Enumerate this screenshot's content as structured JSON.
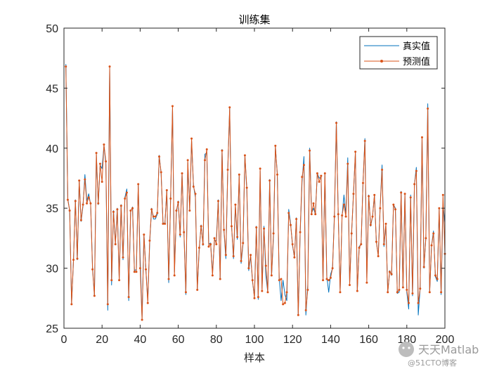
{
  "chart_data": {
    "type": "line",
    "title": "训练集",
    "xlabel": "样本",
    "ylabel": "",
    "xlim": [
      0,
      200
    ],
    "ylim": [
      25,
      50
    ],
    "x_ticks": [
      0,
      20,
      40,
      60,
      80,
      100,
      120,
      140,
      160,
      180,
      200
    ],
    "y_ticks": [
      25,
      30,
      35,
      40,
      45,
      50
    ],
    "grid": false,
    "legend_position": "top-right",
    "x": [
      1,
      2,
      3,
      4,
      5,
      6,
      7,
      8,
      9,
      10,
      11,
      12,
      13,
      14,
      15,
      16,
      17,
      18,
      19,
      20,
      21,
      22,
      23,
      24,
      25,
      26,
      27,
      28,
      29,
      30,
      31,
      32,
      33,
      34,
      35,
      36,
      37,
      38,
      39,
      40,
      41,
      42,
      43,
      44,
      45,
      46,
      47,
      48,
      49,
      50,
      51,
      52,
      53,
      54,
      55,
      56,
      57,
      58,
      59,
      60,
      61,
      62,
      63,
      64,
      65,
      66,
      67,
      68,
      69,
      70,
      71,
      72,
      73,
      74,
      75,
      76,
      77,
      78,
      79,
      80,
      81,
      82,
      83,
      84,
      85,
      86,
      87,
      88,
      89,
      90,
      91,
      92,
      93,
      94,
      95,
      96,
      97,
      98,
      99,
      100,
      101,
      102,
      103,
      104,
      105,
      106,
      107,
      108,
      109,
      110,
      111,
      112,
      113,
      114,
      115,
      116,
      117,
      118,
      119,
      120,
      121,
      122,
      123,
      124,
      125,
      126,
      127,
      128,
      129,
      130,
      131,
      132,
      133,
      134,
      135,
      136,
      137,
      138,
      139,
      140,
      141,
      142,
      143,
      144,
      145,
      146,
      147,
      148,
      149,
      150,
      151,
      152,
      153,
      154,
      155,
      156,
      157,
      158,
      159,
      160,
      161,
      162,
      163,
      164,
      165,
      166,
      167,
      168,
      169,
      170,
      171,
      172,
      173,
      174,
      175,
      176,
      177,
      178,
      179,
      180,
      181,
      182,
      183,
      184,
      185,
      186,
      187,
      188,
      189,
      190,
      191,
      192,
      193,
      194,
      195,
      196,
      197,
      198,
      199,
      200
    ],
    "series": [
      {
        "name": "真实值",
        "color": "#0072BD",
        "marker": "none",
        "values": [
          47.0,
          35.8,
          34.8,
          27.1,
          30.6,
          35.7,
          30.7,
          37.3,
          33.9,
          35.2,
          37.8,
          35.6,
          36.2,
          35.3,
          30.1,
          27.7,
          39.5,
          35.3,
          38.6,
          38.3,
          40.2,
          38.7,
          26.5,
          46.8,
          28.6,
          34.8,
          32.1,
          35.0,
          29.1,
          35.3,
          30.7,
          35.9,
          36.6,
          27.3,
          34.7,
          35.1,
          29.8,
          29.9,
          36.9,
          30.9,
          25.8,
          32.8,
          29.9,
          27.3,
          32.1,
          35.0,
          34.1,
          34.1,
          34.5,
          39.4,
          37.9,
          33.8,
          33.7,
          36.5,
          28.8,
          35.9,
          43.3,
          29.7,
          34.6,
          35.6,
          32.6,
          37.9,
          32.9,
          27.8,
          38.8,
          34.9,
          40.6,
          36.9,
          35.9,
          28.2,
          31.5,
          33.6,
          31.9,
          39.5,
          39.6,
          32.0,
          32.1,
          29.6,
          32.3,
          32.3,
          35.7,
          29.1,
          39.9,
          33.1,
          30.8,
          38.3,
          43.3,
          33.5,
          30.8,
          35.2,
          32.4,
          37.7,
          30.4,
          32.0,
          39.4,
          36.5,
          29.8,
          31.0,
          28.9,
          27.6,
          33.5,
          27.4,
          38.1,
          28.3,
          33.5,
          29.4,
          28.0,
          37.4,
          29.4,
          32.6,
          40.1,
          37.9,
          29.2,
          27.3,
          29.0,
          27.8,
          27.3,
          34.9,
          33.7,
          31.9,
          30.9,
          34.2,
          26.1,
          32.9,
          37.2,
          39.3,
          26.1,
          28.6,
          40.0,
          34.6,
          35.0,
          34.5,
          37.9,
          37.5,
          37.6,
          29.0,
          37.8,
          29.3,
          28.0,
          29.5,
          30.0,
          34.5,
          42.2,
          34.5,
          28.1,
          34.3,
          36.1,
          34.5,
          39.2,
          28.8,
          32.9,
          36.2,
          39.6,
          28.1,
          31.8,
          32.0,
          37.1,
          40.8,
          29.2,
          36.1,
          33.5,
          34.3,
          36.1,
          32.2,
          31.1,
          35.1,
          38.6,
          31.8,
          33.6,
          28.0,
          29.8,
          29.4,
          35.3,
          35.0,
          27.9,
          28.0,
          36.4,
          28.4,
          36.2,
          28.0,
          26.6,
          36.1,
          27.7,
          37.0,
          38.4,
          26.1,
          28.3,
          40.9,
          30.0,
          32.6,
          43.7,
          28.0,
          31.9,
          33.1,
          29.3,
          28.9,
          34.9,
          27.8,
          35.3,
          33.8
        ]
      },
      {
        "name": "预测值",
        "color": "#D95319",
        "marker": "dot",
        "values": [
          46.8,
          35.7,
          34.8,
          27.0,
          30.7,
          35.6,
          30.8,
          37.3,
          34.0,
          35.3,
          37.4,
          35.4,
          35.9,
          35.4,
          29.9,
          27.7,
          39.6,
          35.4,
          38.7,
          37.2,
          40.3,
          38.9,
          27.0,
          46.8,
          29.0,
          34.7,
          32.0,
          34.9,
          29.0,
          35.2,
          30.9,
          35.8,
          36.3,
          27.6,
          34.8,
          35.0,
          29.7,
          29.7,
          37.0,
          30.0,
          25.7,
          32.8,
          29.9,
          27.1,
          32.3,
          34.9,
          34.3,
          34.3,
          34.6,
          39.3,
          38.0,
          33.7,
          33.7,
          36.5,
          29.1,
          35.8,
          43.5,
          29.4,
          34.8,
          35.5,
          32.8,
          37.9,
          33.0,
          28.0,
          39.0,
          34.8,
          40.8,
          36.8,
          36.2,
          28.2,
          31.7,
          33.5,
          32.0,
          39.0,
          39.9,
          31.8,
          32.0,
          29.4,
          32.5,
          32.0,
          35.6,
          29.1,
          39.8,
          33.2,
          31.1,
          38.2,
          43.4,
          33.5,
          31.0,
          35.3,
          32.6,
          37.8,
          30.6,
          32.1,
          39.4,
          36.7,
          30.0,
          31.1,
          29.0,
          27.5,
          33.4,
          27.6,
          38.3,
          28.1,
          33.3,
          30.2,
          28.0,
          37.3,
          29.4,
          32.9,
          40.2,
          37.8,
          29.0,
          29.1,
          27.0,
          27.1,
          28.0,
          34.6,
          33.6,
          32.0,
          30.9,
          34.1,
          26.1,
          33.0,
          37.6,
          38.6,
          26.5,
          28.2,
          39.8,
          34.5,
          35.4,
          34.5,
          37.9,
          37.2,
          37.7,
          29.0,
          37.9,
          29.1,
          29.0,
          29.2,
          30.0,
          34.3,
          42.1,
          34.5,
          28.0,
          34.4,
          35.3,
          34.3,
          38.7,
          28.6,
          32.9,
          36.2,
          39.7,
          28.1,
          31.7,
          32.0,
          37.1,
          40.6,
          28.8,
          36.0,
          33.6,
          34.3,
          36.1,
          32.2,
          31.0,
          35.0,
          38.2,
          32.0,
          33.7,
          28.0,
          29.7,
          29.5,
          35.3,
          34.9,
          28.0,
          28.2,
          36.3,
          28.4,
          36.2,
          28.2,
          27.1,
          35.9,
          27.9,
          37.0,
          38.1,
          27.1,
          28.3,
          40.9,
          30.1,
          32.5,
          43.3,
          28.0,
          31.9,
          32.9,
          29.4,
          29.1,
          35.0,
          28.0,
          36.1,
          31.2
        ]
      }
    ]
  },
  "watermark": {
    "line1": "天天Matlab",
    "line2": "@51CTO博客"
  }
}
